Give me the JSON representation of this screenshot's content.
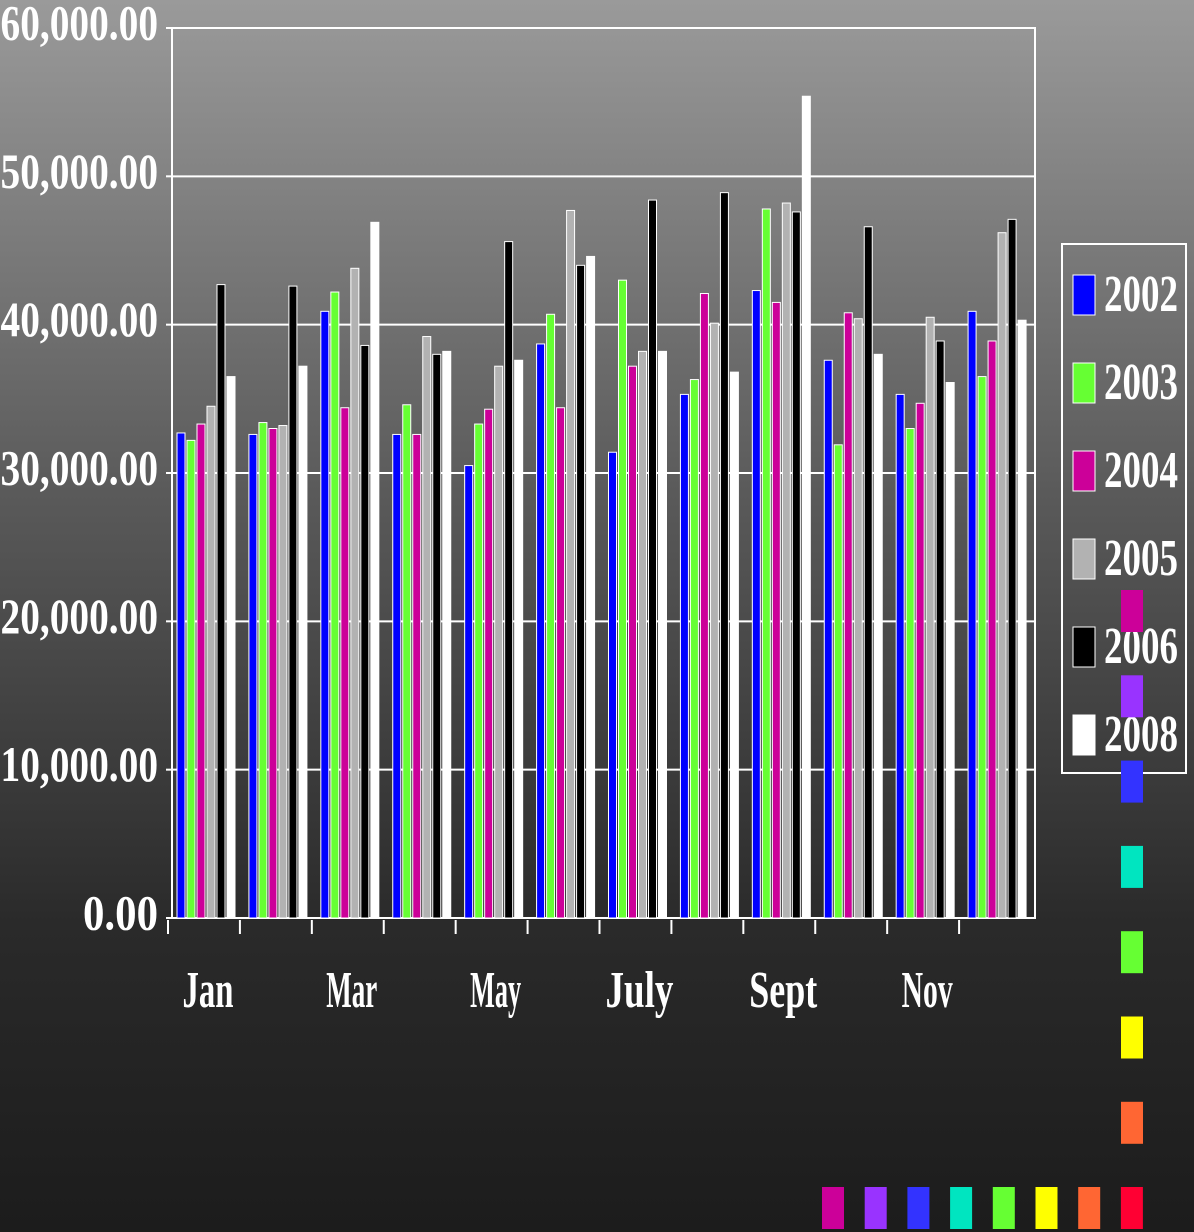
{
  "chart_data": {
    "type": "bar",
    "categories": [
      "Jan",
      null,
      "Mar",
      null,
      "May",
      null,
      "July",
      null,
      "Sept",
      null,
      "Nov",
      null
    ],
    "series": [
      {
        "name": "2002",
        "color": "#0000ff",
        "values": [
          32700,
          32600,
          40900,
          32600,
          30500,
          38700,
          31400,
          35300,
          42300,
          37600,
          35300,
          40900
        ]
      },
      {
        "name": "2003",
        "color": "#66ff33",
        "values": [
          32200,
          33400,
          42200,
          34600,
          33300,
          40700,
          43000,
          36300,
          47800,
          31900,
          33000,
          36500
        ]
      },
      {
        "name": "2004",
        "color": "#cc0099",
        "values": [
          33300,
          33000,
          34400,
          32600,
          34300,
          34400,
          37200,
          42100,
          41500,
          40800,
          34700,
          38900
        ]
      },
      {
        "name": "2005",
        "color": "#b2b2b2",
        "values": [
          34500,
          33200,
          43800,
          39200,
          37200,
          47700,
          38200,
          40100,
          48200,
          40400,
          40500,
          46200
        ]
      },
      {
        "name": "2006",
        "color": "#000000",
        "values": [
          42700,
          42600,
          38600,
          38000,
          45600,
          44000,
          48400,
          48900,
          47600,
          46600,
          38900,
          47100
        ]
      },
      {
        "name": "2008",
        "color": "#ffffff",
        "values": [
          36500,
          37200,
          46900,
          38200,
          37600,
          44600,
          38200,
          36800,
          55400,
          38000,
          36100,
          40300
        ]
      }
    ],
    "ylim": [
      0,
      60000
    ],
    "yticks": [
      {
        "value": 0,
        "label": "0.00"
      },
      {
        "value": 10000,
        "label": "10,000.00"
      },
      {
        "value": 20000,
        "label": "20,000.00"
      },
      {
        "value": 30000,
        "label": "30,000.00"
      },
      {
        "value": 40000,
        "label": "40,000.00"
      },
      {
        "value": 50000,
        "label": "50,000.00"
      },
      {
        "value": 60000,
        "label": "60,000.00"
      }
    ],
    "grid": true,
    "legend": "right"
  }
}
